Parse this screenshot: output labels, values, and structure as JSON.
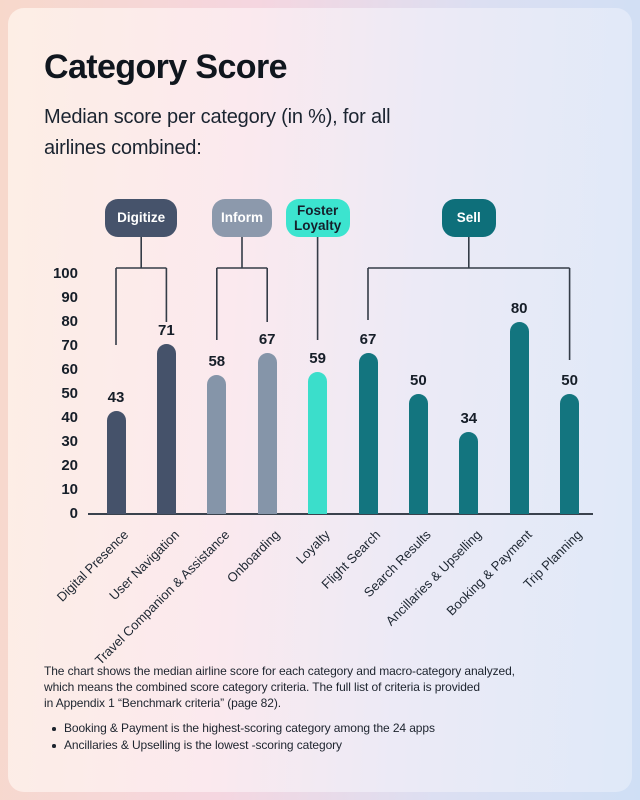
{
  "header": {
    "title": "Category Score",
    "subtitle_lines": [
      "Median score per category (in %), for all",
      "airlines combined:"
    ]
  },
  "chart_data": {
    "type": "bar",
    "title": "Category Score",
    "subtitle": "Median score per category (in %), for all airlines combined:",
    "ylim": [
      0,
      100
    ],
    "yticks": [
      0,
      10,
      20,
      30,
      40,
      50,
      60,
      70,
      80,
      90,
      100
    ],
    "grid": false,
    "value_labels_shown": true,
    "groups": [
      {
        "label": "Digitize",
        "pill_color": "#46536B",
        "label_text_color": "#ffffff",
        "bar_color": "#45526A",
        "categories": [
          "Digital Presence",
          "User Navigation"
        ],
        "values": [
          43,
          71
        ]
      },
      {
        "label": "Inform",
        "pill_color": "#8C99AC",
        "label_text_color": "#ffffff",
        "bar_color": "#8595A9",
        "categories": [
          "Travel Companion & Assistance",
          "Onboarding"
        ],
        "values": [
          58,
          67
        ]
      },
      {
        "label": "Foster Loyalty",
        "pill_color": "#3CE4CF",
        "label_text_color": "#15202C",
        "bar_color": "#3BDECB",
        "categories": [
          "Loyalty"
        ],
        "values": [
          59
        ]
      },
      {
        "label": "Sell",
        "pill_color": "#0E6F7A",
        "label_text_color": "#ffffff",
        "bar_color": "#13757F",
        "categories": [
          "Flight Search",
          "Search Results",
          "Ancillaries & Upselling",
          "Booking & Payment",
          "Trip Planning"
        ],
        "values": [
          67,
          50,
          34,
          80,
          50
        ]
      }
    ]
  },
  "footer": {
    "paragraph_lines": [
      "The chart shows the median airline score for each category and macro-category analyzed,",
      "which means the combined score category criteria. The full list of criteria is provided",
      "in Appendix 1 “Benchmark criteria” (page 82)."
    ],
    "bullets": [
      "Booking & Payment is the highest-scoring category among the 24 apps",
      "Ancillaries & Upselling is the lowest -scoring category"
    ]
  },
  "colors": {
    "background_left": "#F7D8CB",
    "background_right": "#CFDFF5",
    "card_left": "#FDEEE5",
    "card_right": "#DFE9F8",
    "connector_line": "#343C47",
    "axis_line": "#3A424D",
    "text": "#161E28"
  }
}
